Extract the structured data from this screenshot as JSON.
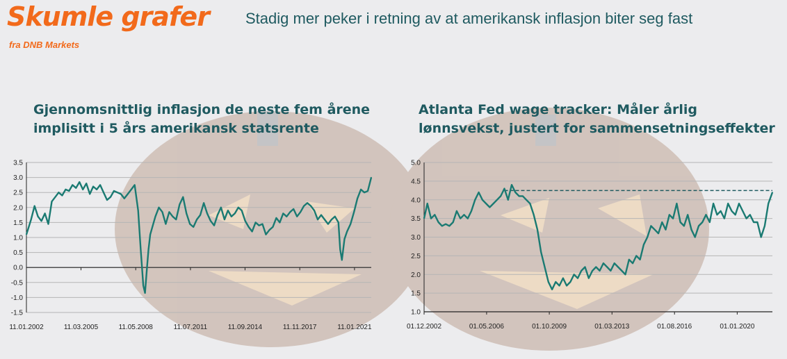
{
  "header": {
    "brand_title": "Skumle grafer",
    "brand_subtitle": "fra DNB Markets",
    "headline": "Stadig mer peker i retning av at amerikansk inflasjon biter seg fast"
  },
  "colors": {
    "brand": "#f26a1b",
    "title": "#1f5a60",
    "series": "#1a7a72",
    "background": "#ececee"
  },
  "chart_data": [
    {
      "type": "line",
      "title": "Gjennomsnittlig inflasjon de neste fem årene implisitt i 5 års amerikansk statsrente",
      "title_lines": [
        "Gjennomsnittlig inflasjon de neste fem årene",
        "implisitt i 5 års amerikansk statsrente"
      ],
      "ylim": [
        -1.5,
        3.5
      ],
      "yticks": [
        "3.5",
        "3.0",
        "2.5",
        "2.0",
        "1.5",
        "1.0",
        "0.5",
        "0.0",
        "-0.5",
        "-1.0",
        "-1.5"
      ],
      "ytick_values": [
        3.5,
        3.0,
        2.5,
        2.0,
        1.5,
        1.0,
        0.5,
        0.0,
        -0.5,
        -1.0,
        -1.5
      ],
      "xlim": [
        2002.03,
        2022.0
      ],
      "xticks": [
        "11.01.2002",
        "11.03.2005",
        "11.05.2008",
        "11.07.2011",
        "11.09.2014",
        "11.11.2017",
        "11.01.2021"
      ],
      "xtick_values": [
        2002.03,
        2005.19,
        2008.36,
        2011.53,
        2014.69,
        2017.86,
        2021.03
      ],
      "grid": "horizontal",
      "series": [
        {
          "x": [
            2002.03,
            2002.3,
            2002.5,
            2002.7,
            2002.9,
            2003.1,
            2003.3,
            2003.5,
            2003.7,
            2003.9,
            2004.1,
            2004.3,
            2004.5,
            2004.7,
            2004.9,
            2005.1,
            2005.3,
            2005.5,
            2005.7,
            2005.9,
            2006.1,
            2006.3,
            2006.5,
            2006.7,
            2006.9,
            2007.1,
            2007.3,
            2007.5,
            2007.7,
            2007.9,
            2008.1,
            2008.3,
            2008.5,
            2008.65,
            2008.8,
            2008.9,
            2009.0,
            2009.1,
            2009.2,
            2009.35,
            2009.5,
            2009.7,
            2009.9,
            2010.1,
            2010.3,
            2010.5,
            2010.7,
            2010.9,
            2011.1,
            2011.3,
            2011.5,
            2011.7,
            2011.9,
            2012.1,
            2012.3,
            2012.5,
            2012.7,
            2012.9,
            2013.1,
            2013.3,
            2013.5,
            2013.7,
            2013.9,
            2014.1,
            2014.3,
            2014.5,
            2014.7,
            2014.9,
            2015.1,
            2015.3,
            2015.5,
            2015.7,
            2015.9,
            2016.1,
            2016.3,
            2016.5,
            2016.7,
            2016.9,
            2017.1,
            2017.3,
            2017.5,
            2017.7,
            2017.9,
            2018.1,
            2018.3,
            2018.5,
            2018.7,
            2018.9,
            2019.1,
            2019.3,
            2019.5,
            2019.7,
            2019.9,
            2020.1,
            2020.2,
            2020.3,
            2020.45,
            2020.6,
            2020.8,
            2021.0,
            2021.2,
            2021.4,
            2021.6,
            2021.8,
            2022.0
          ],
          "values": [
            1.1,
            1.6,
            2.05,
            1.7,
            1.55,
            1.8,
            1.45,
            2.2,
            2.35,
            2.5,
            2.4,
            2.6,
            2.55,
            2.75,
            2.65,
            2.85,
            2.6,
            2.8,
            2.45,
            2.7,
            2.6,
            2.75,
            2.5,
            2.25,
            2.35,
            2.55,
            2.5,
            2.45,
            2.3,
            2.45,
            2.6,
            2.75,
            1.9,
            0.6,
            -0.6,
            -0.85,
            -0.1,
            0.6,
            1.1,
            1.4,
            1.7,
            2.0,
            1.85,
            1.45,
            1.85,
            1.7,
            1.6,
            2.1,
            2.35,
            1.8,
            1.45,
            1.35,
            1.6,
            1.75,
            2.15,
            1.8,
            1.55,
            1.4,
            1.75,
            2.0,
            1.6,
            1.9,
            1.7,
            1.8,
            2.0,
            1.9,
            1.55,
            1.35,
            1.2,
            1.5,
            1.4,
            1.45,
            1.1,
            1.25,
            1.35,
            1.65,
            1.5,
            1.8,
            1.7,
            1.85,
            1.95,
            1.7,
            1.85,
            2.05,
            2.15,
            2.05,
            1.9,
            1.6,
            1.75,
            1.6,
            1.45,
            1.6,
            1.7,
            1.5,
            0.6,
            0.25,
            0.95,
            1.2,
            1.45,
            1.85,
            2.3,
            2.6,
            2.5,
            2.55,
            3.0
          ]
        }
      ]
    },
    {
      "type": "line",
      "title": "Atlanta Fed wage tracker: Måler årlig lønnsvekst, justert for sammensetningseffekter",
      "title_lines": [
        "Atlanta Fed wage tracker: Måler årlig",
        "lønnsvekst, justert for sammensetningseffekter"
      ],
      "ylim": [
        1.0,
        5.0
      ],
      "yticks": [
        "5.0",
        "4.5",
        "4.0",
        "3.5",
        "3.0",
        "2.5",
        "2.0",
        "1.5",
        "1.0"
      ],
      "ytick_values": [
        5.0,
        4.5,
        4.0,
        3.5,
        3.0,
        2.5,
        2.0,
        1.5,
        1.0
      ],
      "xlim": [
        2002.92,
        2021.92
      ],
      "xticks": [
        "01.12.2002",
        "01.05.2006",
        "01.10.2009",
        "01.03.2013",
        "01.08.2016",
        "01.01.2020"
      ],
      "xtick_values": [
        2002.92,
        2006.33,
        2009.75,
        2013.17,
        2016.58,
        2020.0
      ],
      "grid": "horizontal",
      "series": [
        {
          "x": [
            2002.92,
            2003.1,
            2003.3,
            2003.5,
            2003.7,
            2003.9,
            2004.1,
            2004.3,
            2004.5,
            2004.7,
            2004.9,
            2005.1,
            2005.3,
            2005.5,
            2005.7,
            2005.9,
            2006.1,
            2006.3,
            2006.5,
            2006.7,
            2006.9,
            2007.1,
            2007.3,
            2007.5,
            2007.7,
            2007.9,
            2008.1,
            2008.3,
            2008.5,
            2008.7,
            2008.9,
            2009.1,
            2009.3,
            2009.5,
            2009.7,
            2009.9,
            2010.1,
            2010.3,
            2010.5,
            2010.7,
            2010.9,
            2011.1,
            2011.3,
            2011.5,
            2011.7,
            2011.9,
            2012.1,
            2012.3,
            2012.5,
            2012.7,
            2012.9,
            2013.1,
            2013.3,
            2013.5,
            2013.7,
            2013.9,
            2014.1,
            2014.3,
            2014.5,
            2014.7,
            2014.9,
            2015.1,
            2015.3,
            2015.5,
            2015.7,
            2015.9,
            2016.1,
            2016.3,
            2016.5,
            2016.7,
            2016.9,
            2017.1,
            2017.3,
            2017.5,
            2017.7,
            2017.9,
            2018.1,
            2018.3,
            2018.5,
            2018.7,
            2018.9,
            2019.1,
            2019.3,
            2019.5,
            2019.7,
            2019.9,
            2020.1,
            2020.3,
            2020.5,
            2020.7,
            2020.9,
            2021.1,
            2021.3,
            2021.5,
            2021.7,
            2021.92
          ],
          "values": [
            3.5,
            3.9,
            3.5,
            3.6,
            3.4,
            3.3,
            3.35,
            3.3,
            3.4,
            3.7,
            3.5,
            3.6,
            3.5,
            3.7,
            4.0,
            4.2,
            4.0,
            3.9,
            3.8,
            3.9,
            4.0,
            4.1,
            4.3,
            4.0,
            4.4,
            4.2,
            4.1,
            4.1,
            4.0,
            3.9,
            3.6,
            3.2,
            2.6,
            2.2,
            1.8,
            1.6,
            1.8,
            1.7,
            1.9,
            1.7,
            1.8,
            2.0,
            1.9,
            2.1,
            2.2,
            1.9,
            2.1,
            2.2,
            2.1,
            2.3,
            2.2,
            2.1,
            2.3,
            2.2,
            2.1,
            2.0,
            2.4,
            2.3,
            2.5,
            2.4,
            2.8,
            3.0,
            3.3,
            3.2,
            3.1,
            3.4,
            3.2,
            3.6,
            3.5,
            3.9,
            3.4,
            3.3,
            3.6,
            3.2,
            3.0,
            3.3,
            3.4,
            3.6,
            3.4,
            3.9,
            3.6,
            3.7,
            3.5,
            3.9,
            3.7,
            3.6,
            3.9,
            3.7,
            3.5,
            3.6,
            3.4,
            3.4,
            3.0,
            3.3,
            3.9,
            4.2
          ]
        }
      ],
      "reference_line": {
        "style": "dashed",
        "value": 4.25,
        "x_start": 2007.3,
        "x_end": 2021.92
      }
    }
  ]
}
